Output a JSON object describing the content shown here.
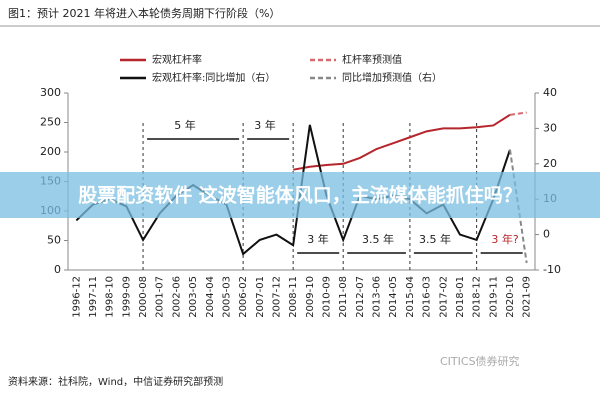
{
  "chart_data": {
    "type": "line",
    "title": "图1：预计 2021 年将进入本轮债务周期下行阶段（%）",
    "source": "资料来源：社科院，Wind，中信证券研究部预测",
    "watermark": "CITICS债券研究",
    "banner": "股票配资软件 这波智能体风口，主流媒体能抓住吗？",
    "categories": [
      "1996-12",
      "1997-11",
      "1998-10",
      "1999-09",
      "2000-08",
      "2001-07",
      "2002-06",
      "2003-05",
      "2004-04",
      "2005-03",
      "2006-02",
      "2007-01",
      "2007-12",
      "2008-11",
      "2009-10",
      "2010-09",
      "2011-08",
      "2012-07",
      "2013-06",
      "2014-05",
      "2015-04",
      "2016-03",
      "2017-02",
      "2018-01",
      "2018-12",
      "2019-11",
      "2020-10",
      "2021-09"
    ],
    "series": [
      {
        "name": "宏观杠杆率",
        "color": "#b5262c",
        "dashed": false,
        "values": [
          null,
          null,
          null,
          null,
          null,
          null,
          null,
          null,
          null,
          null,
          null,
          null,
          null,
          170,
          175,
          178,
          180,
          190,
          205,
          215,
          225,
          235,
          240,
          240,
          242,
          245,
          263,
          null
        ]
      },
      {
        "name": "杠杆率预测值",
        "color": "#d46a70",
        "dashed": true,
        "values": [
          null,
          null,
          null,
          null,
          null,
          null,
          null,
          null,
          null,
          null,
          null,
          null,
          null,
          null,
          null,
          null,
          null,
          null,
          null,
          null,
          null,
          null,
          null,
          null,
          null,
          null,
          263,
          267
        ]
      },
      {
        "name": "宏观杠杆率:同比增加（右）",
        "color": "#111111",
        "dashed": false,
        "axis": "y2",
        "values": [
          4,
          8.5,
          10,
          8,
          -1.5,
          6,
          11,
          14,
          11,
          8.5,
          -5.5,
          -1.5,
          0,
          -3,
          31,
          11,
          -1.5,
          11,
          10,
          11,
          10,
          6,
          8.5,
          0,
          -1.5,
          10,
          24,
          null
        ]
      },
      {
        "name": "同比增加预测值（右）",
        "color": "#888888",
        "dashed": true,
        "axis": "y2",
        "values": [
          null,
          null,
          null,
          null,
          null,
          null,
          null,
          null,
          null,
          null,
          null,
          null,
          null,
          null,
          null,
          null,
          null,
          null,
          null,
          null,
          null,
          null,
          null,
          null,
          null,
          null,
          24,
          -8
        ]
      }
    ],
    "annotations": [
      "5 年",
      "3 年",
      "3 年",
      "3.5 年",
      "3.5 年",
      "3 年?"
    ],
    "ylim": [
      0,
      300
    ],
    "yticks": [
      0,
      50,
      100,
      150,
      200,
      250,
      300
    ],
    "y2lim": [
      -10,
      40
    ],
    "y2ticks": [
      -10,
      0,
      10,
      20,
      30,
      40
    ]
  }
}
